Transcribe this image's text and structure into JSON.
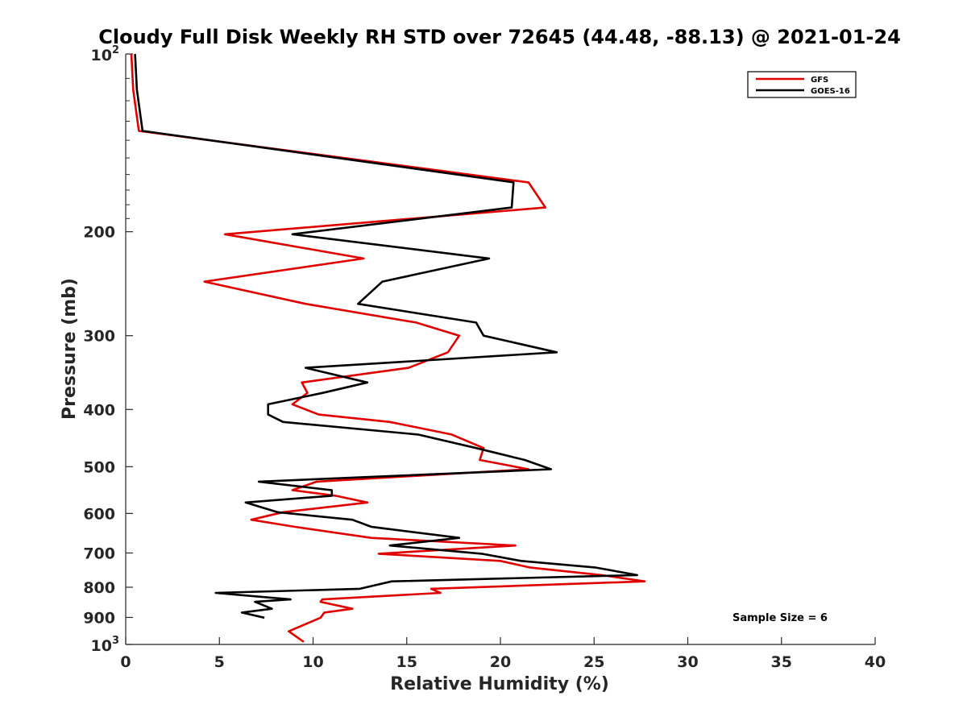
{
  "chart_data": {
    "type": "line",
    "title": "Cloudy Full Disk Weekly RH STD over 72645 (44.48, -88.13) @ 2021-01-24",
    "xlabel": "Relative Humidity (%)",
    "ylabel": "Pressure (mb)",
    "xlim": [
      0,
      40
    ],
    "ylim": [
      100,
      1000
    ],
    "y_scale": "log",
    "y_reversed": true,
    "x_ticks": [
      "0",
      "5",
      "10",
      "15",
      "20",
      "25",
      "30",
      "35",
      "40"
    ],
    "y_ticks": [
      {
        "value": 100,
        "base": "10",
        "exp": "2"
      },
      {
        "value": 200,
        "label": "200"
      },
      {
        "value": 300,
        "label": "300"
      },
      {
        "value": 400,
        "label": "400"
      },
      {
        "value": 500,
        "label": "500"
      },
      {
        "value": 600,
        "label": "600"
      },
      {
        "value": 700,
        "label": "700"
      },
      {
        "value": 800,
        "label": "800"
      },
      {
        "value": 900,
        "label": "900"
      },
      {
        "value": 1000,
        "base": "10",
        "exp": "3"
      }
    ],
    "grid": false,
    "legend_position": "top-right",
    "annotation": "Sample Size = 6",
    "series": [
      {
        "name": "GFS",
        "color": "#e00000",
        "points": [
          [
            0.3,
            100
          ],
          [
            0.4,
            115
          ],
          [
            0.7,
            135
          ],
          [
            21.5,
            165
          ],
          [
            22.4,
            182
          ],
          [
            5.3,
            202
          ],
          [
            12.7,
            222
          ],
          [
            4.2,
            243
          ],
          [
            9.6,
            265
          ],
          [
            15.5,
            285
          ],
          [
            17.8,
            300
          ],
          [
            17.2,
            320
          ],
          [
            15.1,
            340
          ],
          [
            9.4,
            360
          ],
          [
            9.7,
            375
          ],
          [
            8.9,
            392
          ],
          [
            10.3,
            408
          ],
          [
            14.1,
            420
          ],
          [
            17.4,
            441
          ],
          [
            19.1,
            465
          ],
          [
            18.9,
            487
          ],
          [
            21.5,
            505
          ],
          [
            10.2,
            530
          ],
          [
            8.9,
            548
          ],
          [
            11.2,
            560
          ],
          [
            12.9,
            575
          ],
          [
            8.4,
            597
          ],
          [
            6.7,
            615
          ],
          [
            9.0,
            632
          ],
          [
            13.1,
            660
          ],
          [
            20.8,
            680
          ],
          [
            13.5,
            702
          ],
          [
            20.0,
            722
          ],
          [
            21.6,
            741
          ],
          [
            25.4,
            763
          ],
          [
            27.7,
            782
          ],
          [
            16.3,
            805
          ],
          [
            16.8,
            818
          ],
          [
            10.5,
            839
          ],
          [
            10.4,
            847
          ],
          [
            12.1,
            870
          ],
          [
            10.6,
            883
          ],
          [
            10.4,
            901
          ],
          [
            8.7,
            950
          ],
          [
            9.5,
            990
          ]
        ]
      },
      {
        "name": "GOES-16",
        "color": "#000000",
        "points": [
          [
            0.5,
            100
          ],
          [
            0.6,
            115
          ],
          [
            0.9,
            135
          ],
          [
            20.7,
            165
          ],
          [
            20.6,
            182
          ],
          [
            8.9,
            202
          ],
          [
            19.4,
            222
          ],
          [
            13.7,
            243
          ],
          [
            12.4,
            265
          ],
          [
            18.7,
            285
          ],
          [
            19.1,
            300
          ],
          [
            23.0,
            320
          ],
          [
            9.6,
            340
          ],
          [
            12.9,
            360
          ],
          [
            10.5,
            375
          ],
          [
            7.6,
            392
          ],
          [
            7.6,
            408
          ],
          [
            8.4,
            420
          ],
          [
            15.6,
            441
          ],
          [
            18.7,
            465
          ],
          [
            21.3,
            487
          ],
          [
            22.7,
            505
          ],
          [
            7.1,
            530
          ],
          [
            11.0,
            548
          ],
          [
            11.0,
            560
          ],
          [
            6.4,
            575
          ],
          [
            8.1,
            597
          ],
          [
            12.1,
            615
          ],
          [
            13.1,
            632
          ],
          [
            17.8,
            660
          ],
          [
            14.1,
            680
          ],
          [
            19.0,
            702
          ],
          [
            21.1,
            722
          ],
          [
            25.1,
            741
          ],
          [
            27.3,
            763
          ],
          [
            14.2,
            782
          ],
          [
            12.5,
            805
          ],
          [
            4.8,
            818
          ],
          [
            8.8,
            839
          ],
          [
            6.9,
            847
          ],
          [
            7.8,
            870
          ],
          [
            6.2,
            883
          ],
          [
            7.4,
            901
          ]
        ]
      }
    ]
  }
}
